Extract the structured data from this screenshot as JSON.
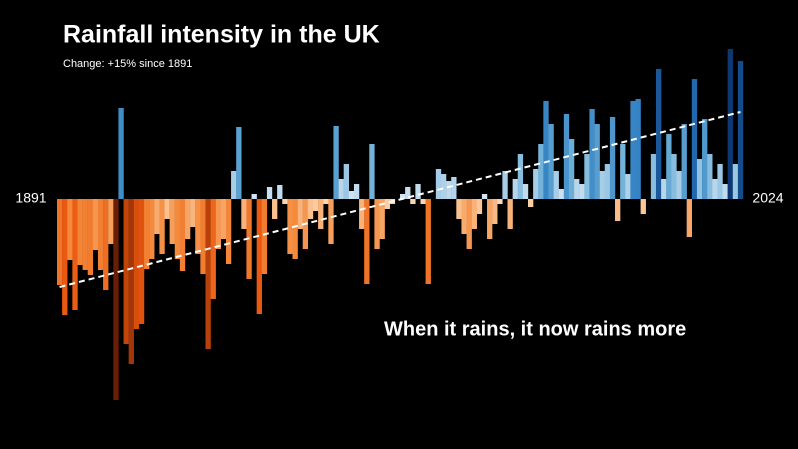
{
  "chart_data": {
    "type": "bar",
    "title": "Rainfall intensity in the UK",
    "subtitle": "Change: +15% since 1891",
    "annotation": "When it rains, it now rains more",
    "categories": [
      "1891",
      null,
      null,
      null,
      null,
      null,
      null,
      null,
      null,
      null,
      null,
      null,
      null,
      null,
      null,
      null,
      null,
      null,
      null,
      null,
      null,
      null,
      null,
      null,
      null,
      null,
      null,
      null,
      null,
      null,
      null,
      null,
      null,
      null,
      null,
      null,
      null,
      null,
      null,
      null,
      null,
      null,
      null,
      null,
      null,
      null,
      null,
      null,
      null,
      null,
      null,
      null,
      null,
      null,
      null,
      null,
      null,
      null,
      null,
      null,
      null,
      null,
      null,
      null,
      null,
      null,
      null,
      null,
      null,
      null,
      null,
      null,
      null,
      null,
      null,
      null,
      null,
      null,
      null,
      null,
      null,
      null,
      null,
      null,
      null,
      null,
      null,
      null,
      null,
      null,
      null,
      null,
      null,
      null,
      null,
      null,
      null,
      null,
      null,
      null,
      null,
      null,
      null,
      null,
      null,
      null,
      null,
      null,
      null,
      null,
      null,
      null,
      null,
      null,
      null,
      null,
      null,
      null,
      null,
      null,
      null,
      null,
      null,
      null,
      null,
      null,
      null,
      null,
      null,
      null,
      null,
      null,
      null,
      "2024"
    ],
    "values": [
      -86,
      -116,
      -61,
      -111,
      -66,
      -71,
      -76,
      -51,
      -71,
      -91,
      -45,
      -201,
      91,
      -145,
      -165,
      -130,
      -125,
      -70,
      -60,
      -35,
      -55,
      -20,
      -45,
      -60,
      -72,
      -40,
      -28,
      -55,
      -75,
      -150,
      -100,
      -50,
      -40,
      -65,
      28,
      72,
      -30,
      -80,
      5,
      -115,
      -75,
      12,
      -20,
      14,
      -5,
      -55,
      -60,
      -30,
      -50,
      -20,
      -12,
      -30,
      -5,
      -45,
      73,
      20,
      35,
      8,
      15,
      -30,
      -85,
      55,
      -50,
      -40,
      -10,
      -5,
      0,
      5,
      12,
      -5,
      15,
      -5,
      -85,
      0,
      30,
      25,
      18,
      22,
      -20,
      -35,
      -50,
      -30,
      -15,
      5,
      -40,
      -25,
      -5,
      28,
      -30,
      20,
      45,
      15,
      -8,
      30,
      55,
      98,
      75,
      28,
      10,
      85,
      60,
      20,
      15,
      45,
      90,
      75,
      28,
      35,
      82,
      -22,
      55,
      25,
      98,
      100,
      -15,
      0,
      45,
      130,
      20,
      65,
      45,
      28,
      75,
      -38,
      120,
      40,
      80,
      45,
      20,
      35,
      15,
      150,
      35,
      138
    ],
    "ylim": [
      -205,
      155
    ],
    "color_stops": [
      [
        -200,
        "#6b1d05"
      ],
      [
        -120,
        "#e8550d"
      ],
      [
        -60,
        "#f48a3c"
      ],
      [
        -1,
        "#fdd9b5"
      ],
      [
        1,
        "#dbe9f6"
      ],
      [
        60,
        "#6baed6"
      ],
      [
        110,
        "#2878c0"
      ],
      [
        155,
        "#08306b"
      ]
    ],
    "trend": {
      "values": [
        -88,
        87
      ]
    }
  }
}
